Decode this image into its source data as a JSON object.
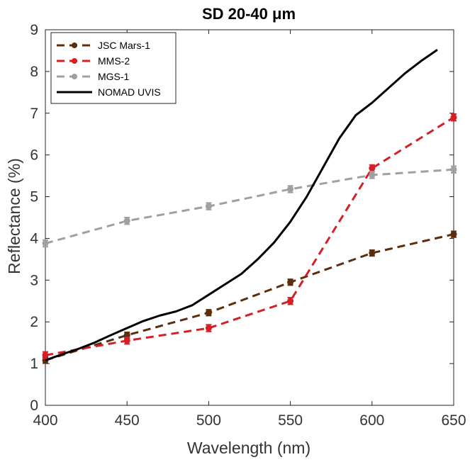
{
  "chart_data": {
    "type": "line",
    "title": "SD 20-40  μm",
    "xlabel": "Wavelength (nm)",
    "ylabel": "Reflectance (%)",
    "xlim": [
      400,
      650
    ],
    "ylim": [
      0,
      9
    ],
    "xticks": [
      400,
      450,
      500,
      550,
      600,
      650
    ],
    "yticks": [
      0,
      1,
      2,
      3,
      4,
      5,
      6,
      7,
      8,
      9
    ],
    "xtick_labels": [
      "400",
      "450",
      "500",
      "550",
      "600",
      "650"
    ],
    "ytick_labels": [
      "0",
      "1",
      "2",
      "3",
      "4",
      "5",
      "6",
      "7",
      "8",
      "9"
    ],
    "grid": false,
    "legend_position": "top-left",
    "series": [
      {
        "name": "JSC Mars-1",
        "style": "dashed-markers-errorbars",
        "color": "#5a2d0c",
        "x": [
          400,
          450,
          500,
          550,
          600,
          650
        ],
        "y": [
          1.08,
          1.68,
          2.22,
          2.95,
          3.65,
          4.1
        ],
        "err": [
          0.07,
          0.07,
          0.07,
          0.07,
          0.07,
          0.07
        ]
      },
      {
        "name": "MMS-2",
        "style": "dashed-markers-errorbars",
        "color": "#d41f26",
        "x": [
          400,
          450,
          500,
          550,
          600,
          650
        ],
        "y": [
          1.2,
          1.55,
          1.85,
          2.5,
          5.68,
          6.9
        ],
        "err": [
          0.08,
          0.08,
          0.08,
          0.08,
          0.08,
          0.08
        ]
      },
      {
        "name": "MGS-1",
        "style": "dashed-markers-errorbars",
        "color": "#a0a0a0",
        "x": [
          400,
          450,
          500,
          550,
          600,
          650
        ],
        "y": [
          3.88,
          4.42,
          4.77,
          5.18,
          5.52,
          5.65
        ],
        "err": [
          0.08,
          0.08,
          0.08,
          0.08,
          0.08,
          0.08
        ]
      },
      {
        "name": "NOMAD UVIS",
        "style": "solid",
        "color": "#000000",
        "x": [
          400,
          410,
          420,
          430,
          440,
          450,
          460,
          470,
          480,
          490,
          500,
          510,
          520,
          530,
          540,
          550,
          560,
          570,
          580,
          590,
          600,
          610,
          620,
          630,
          640
        ],
        "y": [
          1.08,
          1.22,
          1.35,
          1.5,
          1.68,
          1.85,
          2.02,
          2.15,
          2.25,
          2.4,
          2.65,
          2.9,
          3.15,
          3.5,
          3.9,
          4.4,
          5.0,
          5.7,
          6.4,
          6.95,
          7.25,
          7.6,
          7.95,
          8.25,
          8.52
        ]
      }
    ]
  }
}
